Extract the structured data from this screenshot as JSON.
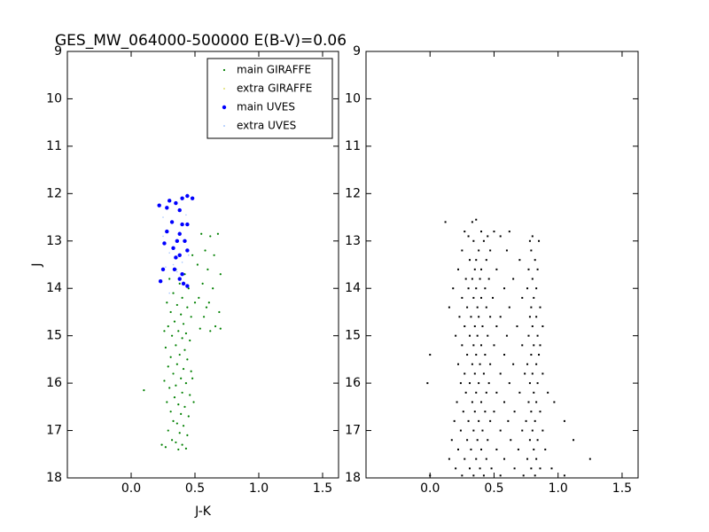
{
  "chart_data": [
    {
      "type": "scatter",
      "title": "GES_MW_064000-500000 E(B-V)=0.06",
      "xlabel": "J-K",
      "ylabel": "J",
      "xlim": [
        -0.5,
        1.625
      ],
      "ylim": [
        18,
        9
      ],
      "xticks": [
        {
          "value": 0,
          "label": "0.0"
        },
        0.5,
        {
          "value": 1,
          "label": "1.0"
        },
        1.5
      ],
      "yticks": [
        9,
        10,
        11,
        12,
        13,
        14,
        15,
        16,
        17,
        18
      ],
      "legend": "upper right",
      "series": [
        {
          "name": "main GIRAFFE",
          "color": "#008000",
          "x": [
            0.35,
            0.42,
            0.3,
            0.38,
            0.45,
            0.33,
            0.4,
            0.28,
            0.36,
            0.44,
            0.31,
            0.39,
            0.47,
            0.34,
            0.41,
            0.29,
            0.37,
            0.43,
            0.32,
            0.4,
            0.46,
            0.35,
            0.27,
            0.42,
            0.38,
            0.31,
            0.44,
            0.36,
            0.29,
            0.41,
            0.47,
            0.33,
            0.39,
            0.26,
            0.43,
            0.35,
            0.3,
            0.4,
            0.46,
            0.34,
            0.28,
            0.37,
            0.42,
            0.31,
            0.39,
            0.45,
            0.33,
            0.36,
            0.41,
            0.29,
            0.38,
            0.44,
            0.32,
            0.35,
            0.4,
            0.27,
            0.37,
            0.43,
            0.24,
            0.1,
            0.48,
            0.5,
            0.26,
            0.49,
            0.55,
            0.62,
            0.68,
            0.58,
            0.65,
            0.52,
            0.6,
            0.7,
            0.56,
            0.64,
            0.53,
            0.61,
            0.69,
            0.57,
            0.66,
            0.54,
            0.62,
            0.7,
            0.59,
            0.48
          ],
          "y": [
            13.6,
            13.7,
            13.8,
            13.9,
            14.0,
            14.1,
            14.2,
            14.3,
            14.35,
            14.4,
            14.5,
            14.55,
            14.6,
            14.7,
            14.75,
            14.8,
            14.9,
            14.95,
            15.0,
            15.05,
            15.1,
            15.2,
            15.25,
            15.3,
            15.4,
            15.45,
            15.5,
            15.6,
            15.65,
            15.7,
            15.75,
            15.8,
            15.9,
            15.95,
            16.0,
            16.05,
            16.1,
            16.2,
            16.25,
            16.3,
            16.4,
            16.45,
            16.5,
            16.6,
            16.65,
            16.7,
            16.8,
            16.85,
            16.9,
            17.0,
            17.05,
            17.1,
            17.2,
            17.25,
            17.3,
            17.35,
            17.4,
            17.38,
            17.3,
            16.15,
            15.9,
            14.3,
            14.9,
            16.4,
            12.85,
            12.9,
            12.85,
            13.2,
            13.3,
            13.5,
            13.6,
            13.7,
            13.9,
            14.0,
            14.2,
            14.3,
            14.5,
            14.6,
            14.8,
            14.85,
            14.9,
            14.85,
            14.4,
            13.3
          ]
        },
        {
          "name": "extra GIRAFFE",
          "color": "#e0e070",
          "x": [],
          "y": []
        },
        {
          "name": "main UVES",
          "color": "#0000ff",
          "x": [
            0.22,
            0.28,
            0.3,
            0.35,
            0.4,
            0.44,
            0.48,
            0.38,
            0.32,
            0.4,
            0.44,
            0.28,
            0.38,
            0.42,
            0.36,
            0.26,
            0.33,
            0.44,
            0.38,
            0.25,
            0.34,
            0.4,
            0.38,
            0.44,
            0.41,
            0.23,
            0.35
          ],
          "y": [
            12.25,
            12.3,
            12.15,
            12.2,
            12.1,
            12.05,
            12.1,
            12.35,
            12.6,
            12.65,
            12.65,
            12.8,
            12.85,
            13.0,
            13.0,
            13.05,
            13.15,
            13.2,
            13.3,
            13.6,
            13.6,
            13.7,
            13.8,
            13.95,
            13.9,
            13.85,
            13.35
          ]
        },
        {
          "name": "extra UVES",
          "color": "#a8c8ff",
          "x": [
            0.25,
            0.3,
            0.33,
            0.27,
            0.36,
            0.4,
            0.45,
            0.3,
            0.43,
            0.25
          ],
          "y": [
            12.9,
            13.25,
            13.5,
            13.55,
            13.65,
            13.45,
            13.3,
            14.1,
            12.45,
            12.5
          ]
        }
      ]
    },
    {
      "type": "scatter",
      "xlim": [
        -0.5,
        1.625
      ],
      "ylim": [
        18,
        9
      ],
      "xticks": [
        {
          "value": 0,
          "label": "0.0"
        },
        0.5,
        {
          "value": 1,
          "label": "1.0"
        },
        1.5
      ],
      "yticks": [
        9,
        10,
        11,
        12,
        13,
        14,
        15,
        16,
        17,
        18
      ],
      "series": [
        {
          "color": "#000000",
          "x": [
            0.36,
            0.12,
            0.33,
            0.27,
            0.4,
            0.5,
            0.62,
            0.3,
            0.45,
            0.55,
            0.8,
            0.34,
            0.42,
            0.78,
            0.85,
            0.25,
            0.38,
            0.47,
            0.6,
            0.79,
            0.31,
            0.36,
            0.44,
            0.7,
            0.82,
            0.22,
            0.35,
            0.4,
            0.52,
            0.77,
            0.84,
            0.28,
            0.33,
            0.39,
            0.46,
            0.65,
            0.8,
            0.18,
            0.3,
            0.36,
            0.43,
            0.58,
            0.76,
            0.83,
            0.25,
            0.34,
            0.4,
            0.49,
            0.72,
            0.81,
            0.15,
            0.29,
            0.37,
            0.44,
            0.62,
            0.79,
            0.86,
            0.23,
            0.32,
            0.38,
            0.47,
            0.55,
            0.78,
            0.83,
            0.27,
            0.35,
            0.41,
            0.52,
            0.68,
            0.8,
            0.88,
            0.2,
            0.31,
            0.37,
            0.45,
            0.6,
            0.77,
            0.84,
            0.25,
            0.34,
            0.4,
            0.5,
            0.72,
            0.81,
            0.86,
            0.0,
            0.29,
            0.36,
            0.43,
            0.58,
            0.79,
            0.85,
            0.22,
            0.33,
            0.39,
            0.47,
            0.65,
            0.76,
            0.83,
            0.27,
            0.35,
            0.42,
            0.55,
            0.74,
            0.8,
            0.88,
            -0.02,
            0.24,
            0.31,
            0.38,
            0.46,
            0.62,
            0.78,
            0.84,
            0.28,
            0.36,
            0.44,
            0.52,
            0.7,
            0.81,
            0.92,
            0.21,
            0.33,
            0.4,
            0.58,
            0.77,
            0.83,
            0.97,
            0.26,
            0.35,
            0.43,
            0.5,
            0.66,
            0.79,
            0.86,
            0.19,
            0.3,
            0.38,
            0.47,
            0.61,
            0.75,
            0.82,
            1.05,
            0.24,
            0.34,
            0.41,
            0.55,
            0.72,
            0.8,
            0.88,
            0.17,
            0.29,
            0.37,
            0.45,
            0.63,
            0.78,
            0.84,
            1.12,
            0.22,
            0.32,
            0.4,
            0.52,
            0.69,
            0.81,
            0.9,
            0.15,
            0.27,
            0.36,
            0.44,
            0.58,
            0.76,
            0.83,
            1.25,
            0.2,
            0.31,
            0.39,
            0.48,
            0.66,
            0.79,
            0.86,
            0.95,
            0.0,
            0.25,
            0.34,
            0.42,
            0.55,
            0.73,
            0.82,
            1.05
          ],
          "y": [
            12.55,
            12.6,
            12.6,
            12.8,
            12.8,
            12.8,
            12.8,
            12.9,
            12.9,
            12.9,
            12.9,
            13.0,
            13.0,
            13.0,
            13.0,
            13.2,
            13.2,
            13.2,
            13.2,
            13.2,
            13.4,
            13.4,
            13.4,
            13.4,
            13.4,
            13.6,
            13.6,
            13.6,
            13.6,
            13.6,
            13.6,
            13.8,
            13.8,
            13.8,
            13.8,
            13.8,
            13.8,
            14.0,
            14.0,
            14.0,
            14.0,
            14.0,
            14.0,
            14.0,
            14.2,
            14.2,
            14.2,
            14.2,
            14.2,
            14.2,
            14.4,
            14.4,
            14.4,
            14.4,
            14.4,
            14.4,
            14.4,
            14.6,
            14.6,
            14.6,
            14.6,
            14.6,
            14.6,
            14.6,
            14.8,
            14.8,
            14.8,
            14.8,
            14.8,
            14.8,
            14.8,
            15.0,
            15.0,
            15.0,
            15.0,
            15.0,
            15.0,
            15.0,
            15.2,
            15.2,
            15.2,
            15.2,
            15.2,
            15.2,
            15.2,
            15.4,
            15.4,
            15.4,
            15.4,
            15.4,
            15.4,
            15.4,
            15.6,
            15.6,
            15.6,
            15.6,
            15.6,
            15.6,
            15.6,
            15.8,
            15.8,
            15.8,
            15.8,
            15.8,
            15.8,
            15.8,
            16.0,
            16.0,
            16.0,
            16.0,
            16.0,
            16.0,
            16.0,
            16.0,
            16.2,
            16.2,
            16.2,
            16.2,
            16.2,
            16.2,
            16.2,
            16.4,
            16.4,
            16.4,
            16.4,
            16.4,
            16.4,
            16.4,
            16.6,
            16.6,
            16.6,
            16.6,
            16.6,
            16.6,
            16.6,
            16.8,
            16.8,
            16.8,
            16.8,
            16.8,
            16.8,
            16.8,
            16.8,
            17.0,
            17.0,
            17.0,
            17.0,
            17.0,
            17.0,
            17.0,
            17.2,
            17.2,
            17.2,
            17.2,
            17.2,
            17.2,
            17.2,
            17.2,
            17.4,
            17.4,
            17.4,
            17.4,
            17.4,
            17.4,
            17.4,
            17.6,
            17.6,
            17.6,
            17.6,
            17.6,
            17.6,
            17.6,
            17.6,
            17.8,
            17.8,
            17.8,
            17.8,
            17.8,
            17.8,
            17.8,
            17.8,
            17.95,
            17.95,
            17.95,
            17.95,
            17.95,
            17.95,
            17.95,
            17.95
          ]
        }
      ]
    }
  ]
}
